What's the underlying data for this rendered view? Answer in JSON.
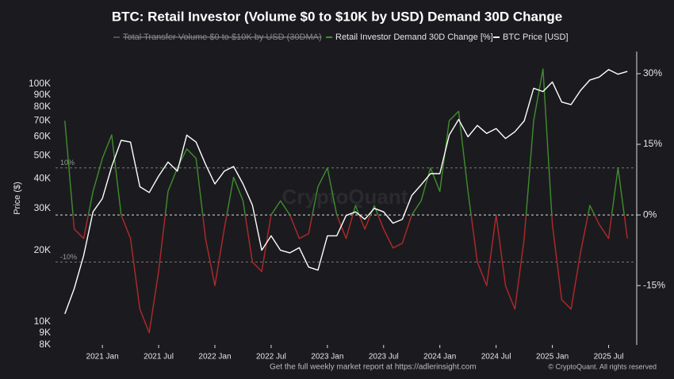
{
  "chart_data": {
    "type": "line",
    "title": "BTC: Retail Investor (Volume $0 to $10K by USD) Demand 30D Change",
    "y_label": "Price ($)",
    "footer": "Get the full weekly market report at https://adlerinsight.com",
    "copyright": "© CryptoQuant. All rights reserved",
    "watermark": "CryptoQuant",
    "hidden_series": "Total Transfer Volume $0 to $10K by USD (30DMA)",
    "x": [
      "2020-09",
      "2020-10",
      "2020-11",
      "2020-12",
      "2021-01",
      "2021-02",
      "2021-03",
      "2021-04",
      "2021-05",
      "2021-06",
      "2021-07",
      "2021-08",
      "2021-09",
      "2021-10",
      "2021-11",
      "2021-12",
      "2022-01",
      "2022-02",
      "2022-03",
      "2022-04",
      "2022-05",
      "2022-06",
      "2022-07",
      "2022-08",
      "2022-09",
      "2022-10",
      "2022-11",
      "2022-12",
      "2023-01",
      "2023-02",
      "2023-03",
      "2023-04",
      "2023-05",
      "2023-06",
      "2023-07",
      "2023-08",
      "2023-09",
      "2023-10",
      "2023-11",
      "2023-12",
      "2024-01",
      "2024-02",
      "2024-03",
      "2024-04",
      "2024-05",
      "2024-06",
      "2024-07",
      "2024-08",
      "2024-09",
      "2024-10",
      "2024-11",
      "2024-12",
      "2025-01",
      "2025-02",
      "2025-03",
      "2025-04",
      "2025-05",
      "2025-06",
      "2025-07",
      "2025-08",
      "2025-09"
    ],
    "xlim": [
      "2020-08",
      "2025-10"
    ],
    "xticks": [
      {
        "value": "2021-01",
        "label": "2021 Jan"
      },
      {
        "value": "2021-07",
        "label": "2021 Jul"
      },
      {
        "value": "2022-01",
        "label": "2022 Jan"
      },
      {
        "value": "2022-07",
        "label": "2022 Jul"
      },
      {
        "value": "2023-01",
        "label": "2023 Jan"
      },
      {
        "value": "2023-07",
        "label": "2023 Jul"
      },
      {
        "value": "2024-01",
        "label": "2024 Jan"
      },
      {
        "value": "2024-07",
        "label": "2024 Jul"
      },
      {
        "value": "2025-01",
        "label": "2025 Jan"
      },
      {
        "value": "2025-07",
        "label": "2025 Jul"
      }
    ],
    "ylim": [
      8000,
      137000
    ],
    "log_scale": true,
    "yticks": [
      {
        "value": 8000,
        "label": "8K"
      },
      {
        "value": 9000,
        "label": "9K"
      },
      {
        "value": 10000,
        "label": "10K"
      },
      {
        "value": 20000,
        "label": "20K"
      },
      {
        "value": 30000,
        "label": "30K"
      },
      {
        "value": 40000,
        "label": "40K"
      },
      {
        "value": 50000,
        "label": "50K"
      },
      {
        "value": 60000,
        "label": "60K"
      },
      {
        "value": 70000,
        "label": "70K"
      },
      {
        "value": 80000,
        "label": "80K"
      },
      {
        "value": 90000,
        "label": "90K"
      },
      {
        "value": 100000,
        "label": "100K"
      }
    ],
    "y2lim": [
      -27.6,
      34.7
    ],
    "y2ticks": [
      {
        "value": -15,
        "label": "-15%"
      },
      {
        "value": 0,
        "label": "0%"
      },
      {
        "value": 15,
        "label": "15%"
      },
      {
        "value": 30,
        "label": "30%"
      }
    ],
    "reference_lines": [
      {
        "value": 10,
        "label": "10%"
      },
      {
        "value": 0,
        "label": ""
      },
      {
        "value": -10,
        "label": "-10%"
      }
    ],
    "series": [
      {
        "name": "Retail Investor Demand 30D Change [%]",
        "color": "#3e8e2c",
        "negative_color": "#b3282a",
        "axis": "y2",
        "values": [
          20,
          -3,
          -5,
          5,
          12,
          17,
          0,
          -5,
          -20,
          -25,
          -12,
          5,
          10,
          14,
          12,
          -5,
          -15,
          -3,
          8,
          3,
          -10,
          -12,
          0,
          3,
          0,
          -5,
          -4,
          6,
          10,
          0,
          -5,
          2,
          -3,
          2,
          -3,
          -7,
          -6,
          0,
          3,
          10,
          5,
          20,
          22,
          5,
          -10,
          -15,
          0,
          -15,
          -20,
          -5,
          20,
          31,
          -2,
          -18,
          -20,
          -8,
          2,
          -2,
          -5,
          10,
          -5
        ]
      },
      {
        "name": "BTC Price [USD]",
        "color": "#ffffff",
        "values": [
          10800,
          13800,
          19000,
          29000,
          33000,
          45000,
          58000,
          57000,
          37000,
          35000,
          41000,
          47000,
          43000,
          61000,
          57000,
          46000,
          38000,
          43000,
          45000,
          38000,
          31000,
          20000,
          23000,
          20000,
          19500,
          20500,
          17000,
          16500,
          23000,
          23000,
          28000,
          29000,
          27000,
          30000,
          29000,
          26000,
          27000,
          34000,
          37700,
          42000,
          42000,
          61000,
          71000,
          60000,
          67000,
          62000,
          65000,
          59000,
          63000,
          70000,
          96000,
          93000,
          102000,
          84000,
          82000,
          94000,
          104000,
          107000,
          115000,
          110000,
          113000
        ]
      }
    ]
  }
}
